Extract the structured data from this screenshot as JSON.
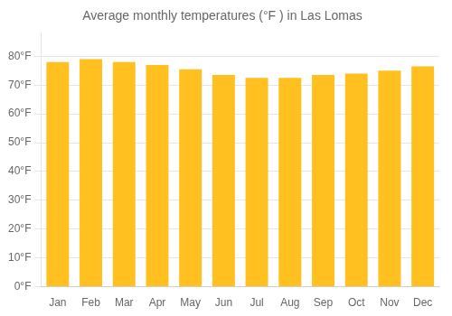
{
  "chart_data": {
    "type": "bar",
    "title": "Average monthly temperatures (°F ) in Las Lomas",
    "categories": [
      "Jan",
      "Feb",
      "Mar",
      "Apr",
      "May",
      "Jun",
      "Jul",
      "Aug",
      "Sep",
      "Oct",
      "Nov",
      "Dec"
    ],
    "values": [
      78,
      79,
      78,
      77,
      75.5,
      73.5,
      72.5,
      72.5,
      73.5,
      74,
      75,
      76.5
    ],
    "color": "#FFC020",
    "ylim": [
      0,
      88
    ],
    "yticks": [
      {
        "value": 0,
        "label": "0°F"
      },
      {
        "value": 10,
        "label": "10°F"
      },
      {
        "value": 20,
        "label": "20°F"
      },
      {
        "value": 30,
        "label": "30°F"
      },
      {
        "value": 40,
        "label": "40°F"
      },
      {
        "value": 50,
        "label": "50°F"
      },
      {
        "value": 60,
        "label": "60°F"
      },
      {
        "value": 70,
        "label": "70°F"
      },
      {
        "value": 80,
        "label": "80°F"
      }
    ],
    "grid": true
  }
}
